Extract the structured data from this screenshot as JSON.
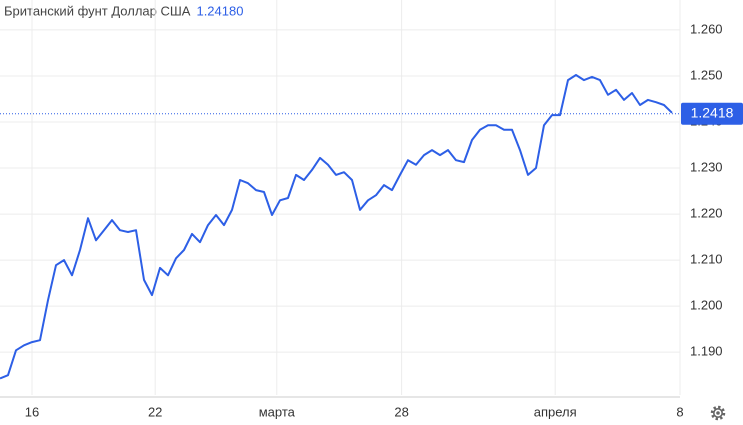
{
  "chart_data": {
    "type": "line",
    "title": "Британский фунт Доллар США",
    "price": {
      "value": 1.2418,
      "label": "1.24180"
    },
    "current": {
      "value": 1.2418,
      "label": "1.2418"
    },
    "color": "#2d5fe6",
    "x": [
      0,
      1,
      2,
      3,
      4,
      5,
      6,
      7,
      8,
      9,
      10,
      11,
      12,
      13,
      14,
      15,
      16,
      17,
      18,
      19,
      20,
      21,
      22,
      23,
      24,
      25,
      26,
      27,
      28,
      29,
      30,
      31,
      32,
      33,
      34,
      35,
      36,
      37,
      38,
      39,
      40,
      41,
      42,
      43,
      44,
      45,
      46,
      47,
      48,
      49,
      50,
      51,
      52,
      53,
      54,
      55,
      56,
      57,
      58,
      59,
      60,
      61,
      62,
      63,
      64,
      65,
      66,
      67,
      68,
      69,
      70,
      71,
      72,
      73,
      74,
      75,
      76,
      77,
      78,
      79,
      80,
      81,
      82,
      83,
      84
    ],
    "values": [
      1.1843,
      1.185,
      1.1904,
      1.1915,
      1.1922,
      1.1926,
      1.2013,
      1.2089,
      1.21,
      1.2067,
      1.2122,
      1.2191,
      1.2143,
      1.2165,
      1.2187,
      1.2165,
      1.2161,
      1.2165,
      1.2057,
      1.2024,
      1.2083,
      1.2067,
      1.2104,
      1.2122,
      1.2157,
      1.2139,
      1.2176,
      1.2198,
      1.2176,
      1.2209,
      1.2274,
      1.2267,
      1.2252,
      1.2248,
      1.2198,
      1.223,
      1.2235,
      1.2285,
      1.2274,
      1.2296,
      1.2322,
      1.2307,
      1.2285,
      1.2291,
      1.2274,
      1.2209,
      1.223,
      1.2241,
      1.2263,
      1.2252,
      1.2285,
      1.2317,
      1.2307,
      1.2328,
      1.2339,
      1.2328,
      1.2339,
      1.2317,
      1.2313,
      1.2361,
      1.2383,
      1.2393,
      1.2393,
      1.2383,
      1.2383,
      1.2339,
      1.2285,
      1.23,
      1.2393,
      1.2415,
      1.2415,
      1.2491,
      1.2502,
      1.2491,
      1.2498,
      1.2491,
      1.2459,
      1.247,
      1.2448,
      1.2463,
      1.2437,
      1.2448,
      1.2443,
      1.2437,
      1.242
    ],
    "xlim": [
      0,
      85
    ],
    "xticks": [
      {
        "value": 4,
        "label": "16"
      },
      {
        "value": 19.4,
        "label": "22"
      },
      {
        "value": 34.6,
        "label": "марта"
      },
      {
        "value": 50.2,
        "label": "28"
      },
      {
        "value": 69.4,
        "label": "апреля"
      },
      {
        "value": 85,
        "label": "8"
      }
    ],
    "ylim": [
      1.1807,
      1.2665
    ],
    "yticks": [
      {
        "value": 1.19,
        "label": "1.190"
      },
      {
        "value": 1.2,
        "label": "1.200"
      },
      {
        "value": 1.21,
        "label": "1.210"
      },
      {
        "value": 1.22,
        "label": "1.220"
      },
      {
        "value": 1.23,
        "label": "1.230"
      },
      {
        "value": 1.24,
        "label": "1.240"
      },
      {
        "value": 1.25,
        "label": "1.250"
      },
      {
        "value": 1.26,
        "label": "1.260"
      }
    ],
    "grid": true
  }
}
